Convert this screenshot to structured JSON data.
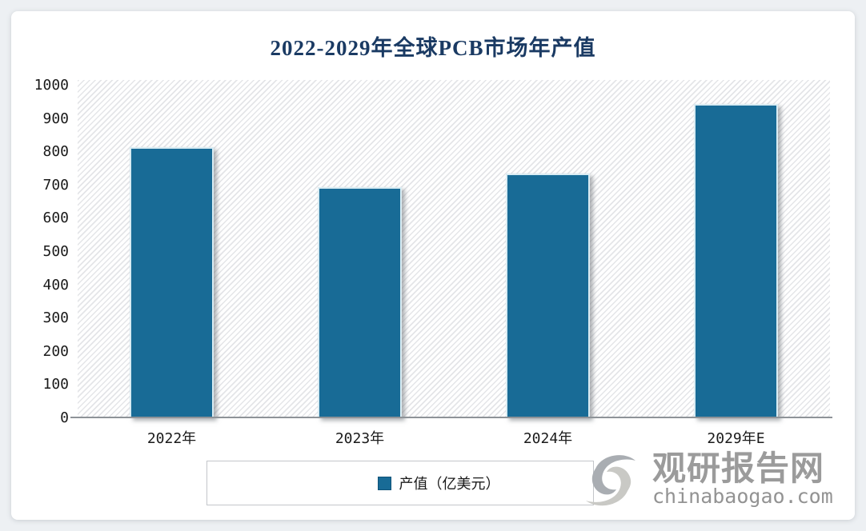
{
  "chart_data": {
    "type": "bar",
    "title": "2022-2029年全球PCB市场年产值",
    "categories": [
      "2022年",
      "2023年",
      "2024年",
      "2029年E"
    ],
    "values": [
      815,
      695,
      735,
      945
    ],
    "series_name": "产值（亿美元）",
    "xlabel": "",
    "ylabel": "",
    "ylim": [
      0,
      1000
    ],
    "yticks": [
      0,
      100,
      200,
      300,
      400,
      500,
      600,
      700,
      800,
      900,
      1000
    ],
    "grid": false,
    "legend_position": "bottom",
    "bar_color": "#186b96",
    "plot_hatch": "diagonal-stripes"
  },
  "legend": {
    "label": "产值（亿美元）"
  },
  "watermark": {
    "site_name": "观研报告网",
    "site_url": "chinabaogao.com"
  },
  "colors": {
    "bar_fill": "#186b96",
    "bar_edge": "#d9ecf3",
    "title_text": "#1a3a63",
    "axis_line": "#8e9398",
    "tick_text": "#1a1a1a",
    "watermark_gray": "#9b9b9b",
    "page_background": "#edf0f3",
    "card_background": "#ffffff",
    "legend_border": "#c3c6ca"
  }
}
